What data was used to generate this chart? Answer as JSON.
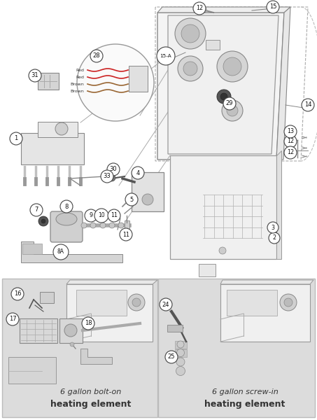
{
  "fig_bg": "#ffffff",
  "top_bg": "#ffffff",
  "panel_bg": "#dcdcdc",
  "panel_border": "#bbbbbb",
  "box_face_color": "#f2f2f2",
  "box_edge_color": "#999999",
  "line_color": "#888888",
  "dark_color": "#555555",
  "bottom_left_text1": "6 gallon bolt-on",
  "bottom_left_text2": "heating element",
  "bottom_right_text1": "6 gallon screw-in",
  "bottom_right_text2": "heating element",
  "wiring_labels": [
    "Red",
    "Red",
    "Brown",
    "Brown"
  ],
  "wiring_colors": [
    "#cc2222",
    "#cc2222",
    "#996633",
    "#996633"
  ]
}
